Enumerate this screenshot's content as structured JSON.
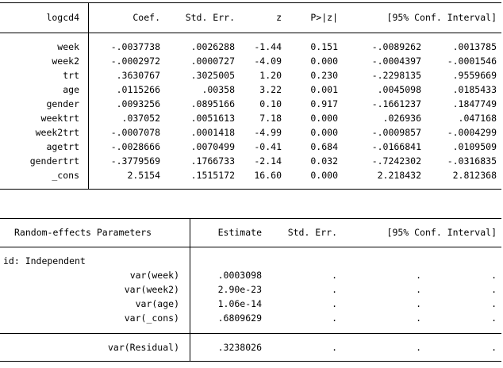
{
  "fixed_effects": {
    "header": {
      "depvar": "logcd4",
      "coef": "Coef.",
      "stderr": "Std. Err.",
      "z": "z",
      "p": "P>|z|",
      "ci": "[95% Conf. Interval]"
    },
    "rows": [
      {
        "name": "week",
        "coef": "-.0037738",
        "se": ".0026288",
        "z": "-1.44",
        "p": "0.151",
        "lo": "-.0089262",
        "hi": ".0013785"
      },
      {
        "name": "week2",
        "coef": "-.0002972",
        "se": ".0000727",
        "z": "-4.09",
        "p": "0.000",
        "lo": "-.0004397",
        "hi": "-.0001546"
      },
      {
        "name": "trt",
        "coef": ".3630767",
        "se": ".3025005",
        "z": "1.20",
        "p": "0.230",
        "lo": "-.2298135",
        "hi": ".9559669"
      },
      {
        "name": "age",
        "coef": ".0115266",
        "se": ".00358",
        "z": "3.22",
        "p": "0.001",
        "lo": ".0045098",
        "hi": ".0185433"
      },
      {
        "name": "gender",
        "coef": ".0093256",
        "se": ".0895166",
        "z": "0.10",
        "p": "0.917",
        "lo": "-.1661237",
        "hi": ".1847749"
      },
      {
        "name": "weektrt",
        "coef": ".037052",
        "se": ".0051613",
        "z": "7.18",
        "p": "0.000",
        "lo": ".026936",
        "hi": ".047168"
      },
      {
        "name": "week2trt",
        "coef": "-.0007078",
        "se": ".0001418",
        "z": "-4.99",
        "p": "0.000",
        "lo": "-.0009857",
        "hi": "-.0004299"
      },
      {
        "name": "agetrt",
        "coef": "-.0028666",
        "se": ".0070499",
        "z": "-0.41",
        "p": "0.684",
        "lo": "-.0166841",
        "hi": ".0109509"
      },
      {
        "name": "gendertrt",
        "coef": "-.3779569",
        "se": ".1766733",
        "z": "-2.14",
        "p": "0.032",
        "lo": "-.7242302",
        "hi": "-.0316835"
      },
      {
        "name": "_cons",
        "coef": "2.5154",
        "se": ".1515172",
        "z": "16.60",
        "p": "0.000",
        "lo": "2.218432",
        "hi": "2.812368"
      }
    ]
  },
  "random_effects": {
    "header": {
      "label": "Random-effects Parameters",
      "estimate": "Estimate",
      "stderr": "Std. Err.",
      "ci": "[95% Conf. Interval]"
    },
    "group_label": "id: Independent",
    "rows": [
      {
        "name": "var(week)",
        "est": ".0003098",
        "se": ".",
        "lo": ".",
        "hi": "."
      },
      {
        "name": "var(week2)",
        "est": "2.90e-23",
        "se": ".",
        "lo": ".",
        "hi": "."
      },
      {
        "name": "var(age)",
        "est": "1.06e-14",
        "se": ".",
        "lo": ".",
        "hi": "."
      },
      {
        "name": "var(_cons)",
        "est": ".6809629",
        "se": ".",
        "lo": ".",
        "hi": "."
      }
    ],
    "residual": {
      "name": "var(Residual)",
      "est": ".3238026",
      "se": ".",
      "lo": ".",
      "hi": "."
    }
  }
}
